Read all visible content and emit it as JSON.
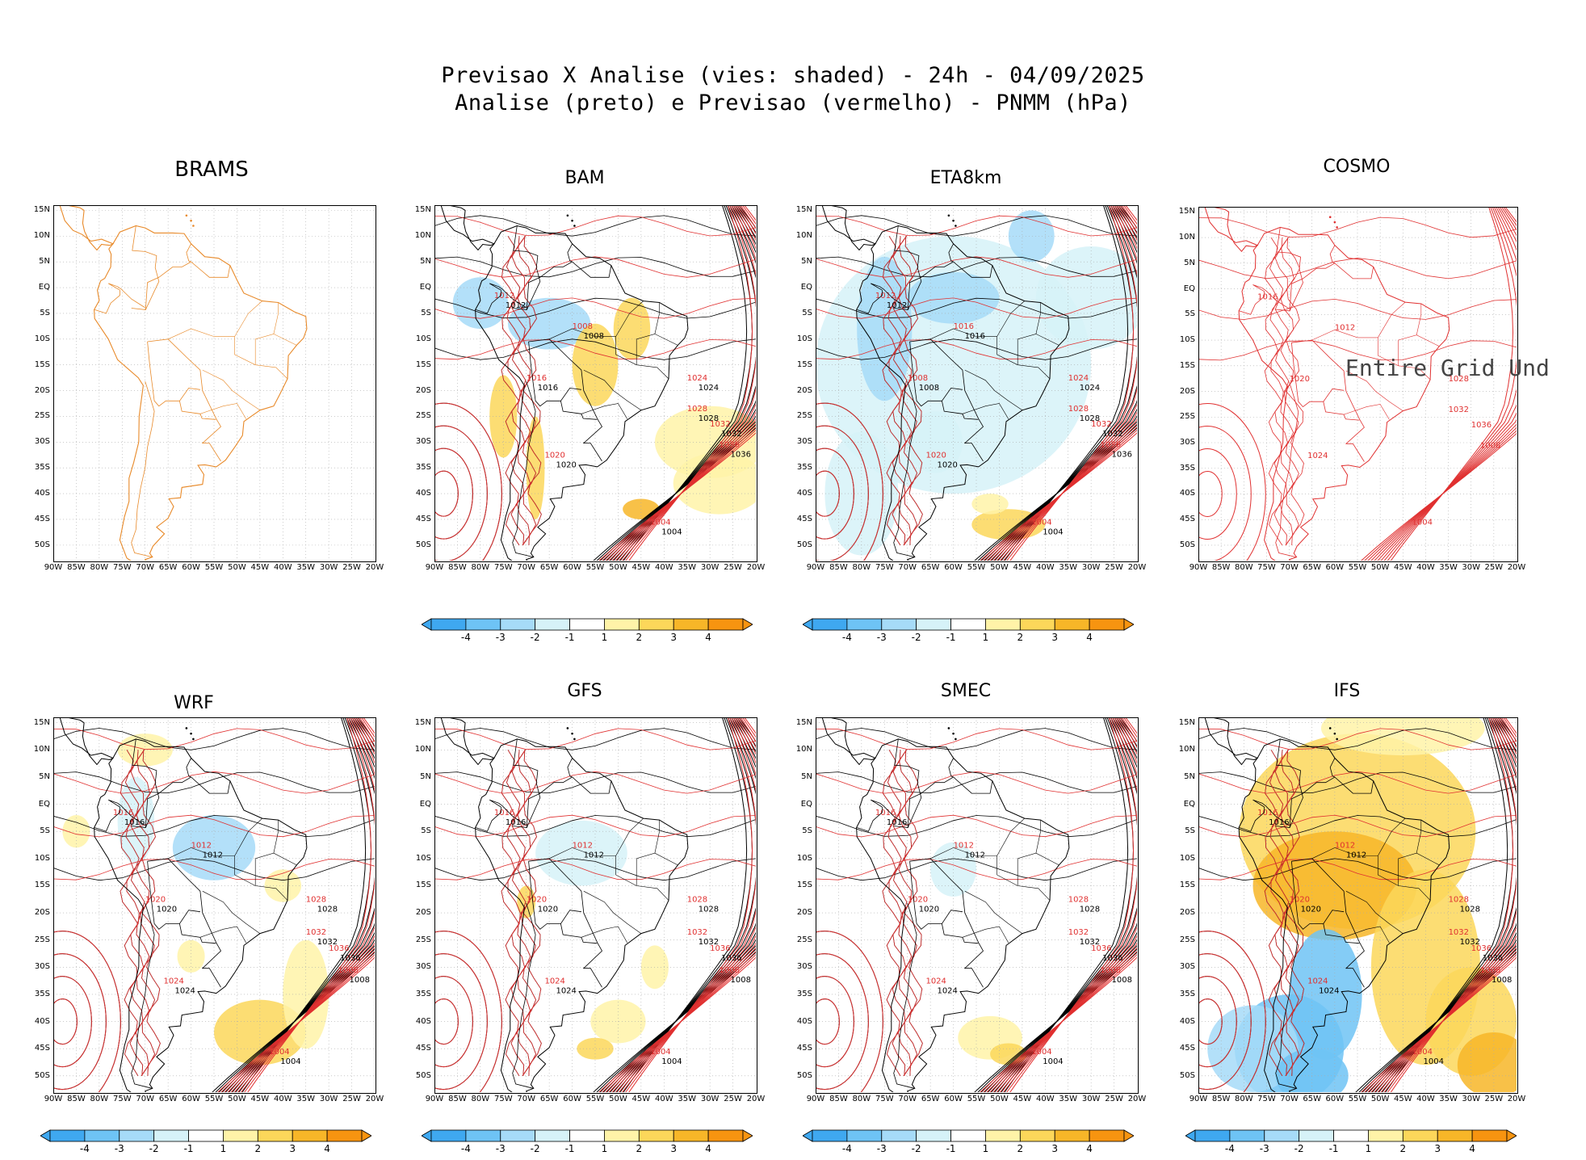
{
  "title": {
    "line1": "Previsao X Analise (vies: shaded) - 24h - 04/09/2025",
    "line2": "Analise (preto) e Previsao (vermelho) - PNMM (hPa)"
  },
  "lat_labels": [
    "15N",
    "10N",
    "5N",
    "EQ",
    "5S",
    "10S",
    "15S",
    "20S",
    "25S",
    "30S",
    "35S",
    "40S",
    "45S",
    "50S"
  ],
  "lon_labels": [
    "90W",
    "85W",
    "80W",
    "75W",
    "70W",
    "65W",
    "60W",
    "55W",
    "50W",
    "45W",
    "40W",
    "35W",
    "30W",
    "25W",
    "20W"
  ],
  "colorbar": {
    "labels": [
      "-4",
      "-3",
      "-2",
      "-1",
      "1",
      "2",
      "3",
      "4"
    ],
    "colors": [
      "#3fa8f0",
      "#6ec3f5",
      "#a6dbf8",
      "#d6f2f8",
      "#ffffff",
      "#fff3a8",
      "#fcd75a",
      "#f7b628",
      "#f79410"
    ]
  },
  "colors": {
    "brams_coast": "#e88a2a",
    "analysis": "#000000",
    "forecast": "#e03030"
  },
  "panels": [
    {
      "id": "brams",
      "title": "BRAMS",
      "overlay": ""
    },
    {
      "id": "bam",
      "title": "BAM",
      "overlay": ""
    },
    {
      "id": "eta8km",
      "title": "ETA8km",
      "overlay": ""
    },
    {
      "id": "cosmo",
      "title": "COSMO",
      "overlay": "Entire Grid Und"
    },
    {
      "id": "wrf",
      "title": "WRF",
      "overlay": ""
    },
    {
      "id": "gfs",
      "title": "GFS",
      "overlay": ""
    },
    {
      "id": "smec",
      "title": "SMEC",
      "overlay": ""
    },
    {
      "id": "ifs",
      "title": "IFS",
      "overlay": ""
    }
  ],
  "contour_labels": {
    "bam": [
      "1008",
      "1012",
      "1016",
      "1020",
      "1024",
      "1028",
      "1032",
      "1036",
      "1004"
    ],
    "eta8km": [
      "1016",
      "1012",
      "1008",
      "1020",
      "1024",
      "1028",
      "1032",
      "1036",
      "1004"
    ],
    "cosmo": [
      "1012",
      "1016",
      "1020",
      "1024",
      "1028",
      "1032",
      "1036",
      "1008",
      "1004"
    ],
    "wrf": [
      "1012",
      "1016",
      "1020",
      "1024",
      "1028",
      "1032",
      "1036",
      "1008",
      "1004"
    ],
    "gfs": [
      "1012",
      "1016",
      "1020",
      "1024",
      "1028",
      "1032",
      "1036",
      "1008",
      "1004"
    ],
    "smec": [
      "1012",
      "1016",
      "1020",
      "1024",
      "1028",
      "1032",
      "1036",
      "1008",
      "1004"
    ],
    "ifs": [
      "1012",
      "1016",
      "1020",
      "1024",
      "1028",
      "1032",
      "1036",
      "1008",
      "1004"
    ]
  }
}
